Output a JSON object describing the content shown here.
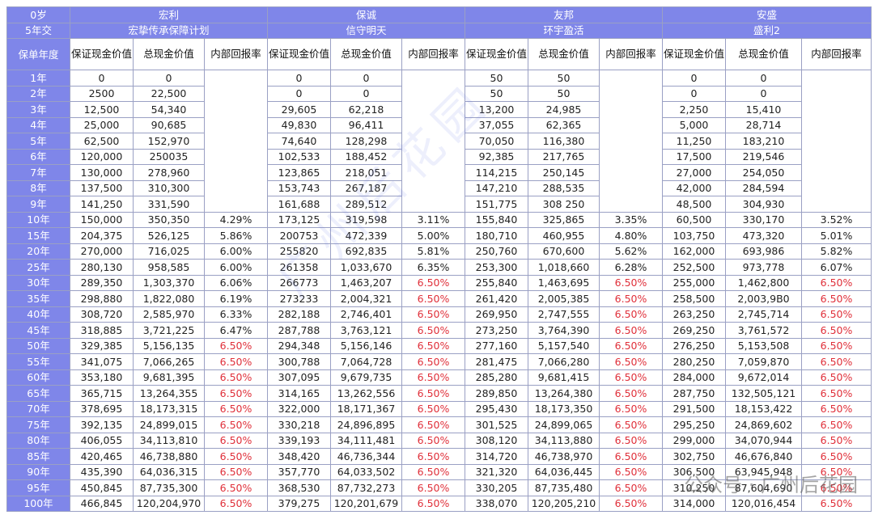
{
  "header": {
    "age": "0岁",
    "pay": "5年交",
    "col_policy_year": "保单年度",
    "companies": [
      {
        "name": "宏利",
        "product": "宏挚传承保障计划"
      },
      {
        "name": "保诚",
        "product": "信守明天"
      },
      {
        "name": "友邦",
        "product": "环宇盈活"
      },
      {
        "name": "安盛",
        "product": "盛利2"
      }
    ],
    "sub": [
      "保证现金价值",
      "总现金价值",
      "内部回报率"
    ]
  },
  "rows": [
    {
      "year": "1年",
      "v": [
        "0",
        "0",
        "",
        "0",
        "0",
        "",
        "50",
        "50",
        "",
        "0",
        "0",
        ""
      ]
    },
    {
      "year": "2年",
      "v": [
        "2500",
        "22,500",
        "",
        "0",
        "0",
        "",
        "50",
        "50",
        "",
        "0",
        "0",
        ""
      ]
    },
    {
      "year": "3年",
      "v": [
        "12,500",
        "54,340",
        "",
        "29,605",
        "62,218",
        "",
        "13,200",
        "24,985",
        "",
        "2,250",
        "15,410",
        ""
      ]
    },
    {
      "year": "4年",
      "v": [
        "25,000",
        "90,685",
        "",
        "49,830",
        "96,411",
        "",
        "37,055",
        "62,365",
        "",
        "5,000",
        "28,714",
        ""
      ]
    },
    {
      "year": "5年",
      "v": [
        "62,500",
        "152,970",
        "",
        "74,640",
        "128,298",
        "",
        "70,050",
        "116,380",
        "",
        "11,250",
        "183,210",
        ""
      ]
    },
    {
      "year": "6年",
      "v": [
        "120,000",
        "250035",
        "",
        "102,533",
        "188,452",
        "",
        "92,385",
        "217,765",
        "",
        "17,500",
        "219,546",
        ""
      ]
    },
    {
      "year": "7年",
      "v": [
        "130,000",
        "278,960",
        "",
        "123,865",
        "218,051",
        "",
        "114,215",
        "250,145",
        "",
        "27,000",
        "254,050",
        ""
      ]
    },
    {
      "year": "8年",
      "v": [
        "137,500",
        "310,300",
        "",
        "153,743",
        "267,187",
        "",
        "147,210",
        "288,535",
        "",
        "42,000",
        "284,594",
        ""
      ]
    },
    {
      "year": "9年",
      "v": [
        "141,250",
        "331,590",
        "",
        "161,688",
        "289,512",
        "",
        "151,775",
        "308 250",
        "",
        "48,500",
        "304,930",
        ""
      ]
    },
    {
      "year": "10年",
      "v": [
        "150,000",
        "350,350",
        "4.29%",
        "173,125",
        "319,598",
        "3.11%",
        "155,840",
        "325,865",
        "3.35%",
        "60,500",
        "330,170",
        "3.52%"
      ]
    },
    {
      "year": "15年",
      "v": [
        "204,375",
        "526,125",
        "5.86%",
        "200753",
        "472,339",
        "5.00%",
        "180,710",
        "460,955",
        "4.80%",
        "103,750",
        "473,320",
        "5.01%"
      ]
    },
    {
      "year": "20年",
      "v": [
        "270,000",
        "716,025",
        "6.00%",
        "255820",
        "692,835",
        "5.81%",
        "250,760",
        "670,600",
        "5.62%",
        "162,000",
        "693,986",
        "5.82%"
      ]
    },
    {
      "year": "25年",
      "v": [
        "280,130",
        "958,585",
        "6.00%",
        "261358",
        "1,033,670",
        "6.35%",
        "253,300",
        "1,018,660",
        "6.28%",
        "252,500",
        "973,778",
        "6.07%"
      ]
    },
    {
      "year": "30年",
      "v": [
        "289,350",
        "1,303,370",
        "6.06%",
        "266773",
        "1,463,207",
        "6.50%",
        "255,840",
        "1,463,695",
        "6.50%",
        "255,000",
        "1,462,800",
        "6.50%"
      ]
    },
    {
      "year": "35年",
      "v": [
        "298,880",
        "1,822,080",
        "6.19%",
        "273233",
        "2,004,321",
        "6.50%",
        "261,420",
        "2,005,385",
        "6.50%",
        "258,500",
        "2,003,9B0",
        "6.50%"
      ]
    },
    {
      "year": "40年",
      "v": [
        "308,720",
        "2,585,970",
        "6.33%",
        "282,188",
        "2,746,401",
        "6.50%",
        "269,950",
        "2,747,555",
        "6.50%",
        "263,250",
        "2,745,714",
        "6.50%"
      ]
    },
    {
      "year": "45年",
      "v": [
        "318,885",
        "3,721,225",
        "6.47%",
        "287,788",
        "3,763,121",
        "6.50%",
        "273,250",
        "3,764,390",
        "6.50%",
        "269,250",
        "3,761,572",
        "6.50%"
      ]
    },
    {
      "year": "50年",
      "v": [
        "329,385",
        "5,156,135",
        "6.50%",
        "294,348",
        "5,156,146",
        "6.50%",
        "277,160",
        "5,157,540",
        "6.50%",
        "276,250",
        "5,153,508",
        "6.50%"
      ]
    },
    {
      "year": "55年",
      "v": [
        "341,075",
        "7,066,265",
        "6.50%",
        "300,788",
        "7,064,728",
        "6.50%",
        "281,475",
        "7,066,280",
        "6.50%",
        "280,250",
        "7,059,870",
        "6.50%"
      ]
    },
    {
      "year": "60年",
      "v": [
        "353,180",
        "9,681,395",
        "6.50%",
        "307,095",
        "9,679,735",
        "6.50%",
        "285,280",
        "9,681,415",
        "6.50%",
        "284,000",
        "9,672,014",
        "6.50%"
      ]
    },
    {
      "year": "65年",
      "v": [
        "365,715",
        "13,264,355",
        "6.50%",
        "314,165",
        "13,262,556",
        "6.50%",
        "289,850",
        "13,264,380",
        "6.50%",
        "287,750",
        "132,505,121",
        "6.50%"
      ]
    },
    {
      "year": "70年",
      "v": [
        "378,695",
        "18,173,315",
        "6.50%",
        "322,000",
        "18,171,367",
        "6.50%",
        "295,430",
        "18,173,350",
        "6.50%",
        "291,500",
        "18,153,422",
        "6.50%"
      ]
    },
    {
      "year": "75年",
      "v": [
        "392,135",
        "24,899,015",
        "6.50%",
        "330,218",
        "24,896,895",
        "6.50%",
        "301,525",
        "24,899,065",
        "6.50%",
        "295,250",
        "24,869,602",
        "6.50%"
      ]
    },
    {
      "year": "80年",
      "v": [
        "406,055",
        "34,113,810",
        "6.50%",
        "339,193",
        "34,111,481",
        "6.50%",
        "308,120",
        "34,113,880",
        "6.50%",
        "299,000",
        "34,070,944",
        "6.50%"
      ]
    },
    {
      "year": "85年",
      "v": [
        "420,465",
        "46,738,880",
        "6.50%",
        "348,420",
        "46,736,344",
        "6.50%",
        "314,720",
        "46,738,970",
        "6.50%",
        "302,750",
        "46,676,840",
        "6.50%"
      ]
    },
    {
      "year": "90年",
      "v": [
        "435,390",
        "64,036,315",
        "6.50%",
        "357,770",
        "64,033,502",
        "6.50%",
        "321,320",
        "64,036,445",
        "6.50%",
        "306,500",
        "63,945,948",
        "6.50%"
      ]
    },
    {
      "year": "95年",
      "v": [
        "450,845",
        "87,735,300",
        "6.50%",
        "368,530",
        "87,732,273",
        "6.50%",
        "330,205",
        "87,735,480",
        "6.50%",
        "310,250",
        "87,604,690",
        "6.50%"
      ]
    },
    {
      "year": "100年",
      "v": [
        "466,845",
        "120,204,970",
        "6.50%",
        "379,275",
        "120,201,679",
        "6.50%",
        "338,070",
        "120,205,210",
        "6.50%",
        "314,000",
        "120,016,454",
        "6.50%"
      ]
    }
  ],
  "footer": "公众号 · 广州后花园",
  "colors": {
    "header_bg": "#7f86e9",
    "red": "#e0303a",
    "border": "#9aa0c4"
  }
}
